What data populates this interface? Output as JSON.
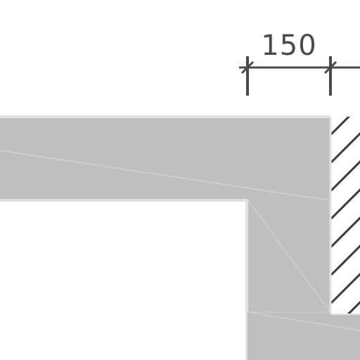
{
  "dimension": {
    "label": "150"
  },
  "colors": {
    "background": "#ffffff",
    "wall_fill": "#bfbfbf",
    "wall_edge": "#e2e2e2",
    "joint_line": "#d6d6d6",
    "hatch": "#3a3a3a",
    "dim_line": "#4a4a4a",
    "dim_text": "#4a4a4a"
  }
}
